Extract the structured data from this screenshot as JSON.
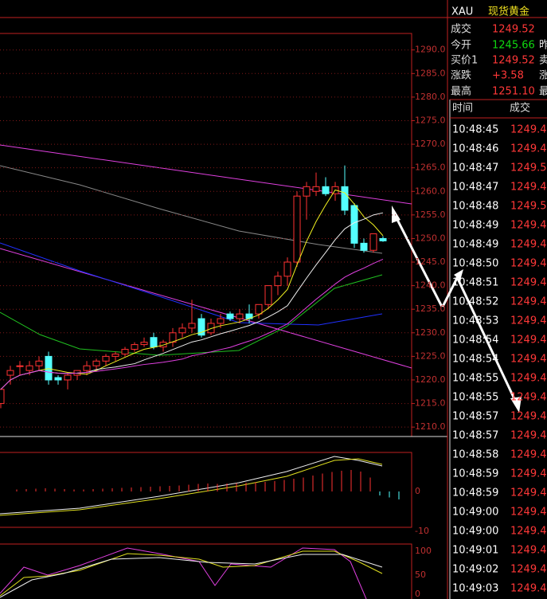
{
  "header": {
    "symbol": "XAU",
    "name": "现货黄金"
  },
  "quote": {
    "rows": [
      {
        "label": "成交",
        "value": "1249.52"
      },
      {
        "label": "今开",
        "value": "1245.66",
        "cut": "昨"
      },
      {
        "label": "买价1",
        "value": "1249.52",
        "cut": "卖"
      },
      {
        "label": "涨跌",
        "value": "+3.58",
        "cut": "涨"
      },
      {
        "label": "最高",
        "value": "1251.10",
        "cut": "最"
      }
    ]
  },
  "trades": {
    "headers": [
      "时间",
      "成交"
    ],
    "rows": [
      [
        "10:48:45",
        "1249.4"
      ],
      [
        "10:48:46",
        "1249.4"
      ],
      [
        "10:48:47",
        "1249.5"
      ],
      [
        "10:48:47",
        "1249.4"
      ],
      [
        "10:48:48",
        "1249.5"
      ],
      [
        "10:48:49",
        "1249.4"
      ],
      [
        "10:48:49",
        "1249.4"
      ],
      [
        "10:48:50",
        "1249.4"
      ],
      [
        "10:48:51",
        "1249.4"
      ],
      [
        "10:48:52",
        "1249.4"
      ],
      [
        "10:48:53",
        "1249.4"
      ],
      [
        "10:48:54",
        "1249.4"
      ],
      [
        "10:48:54",
        "1249.4"
      ],
      [
        "10:48:55",
        "1249.4"
      ],
      [
        "10:48:55",
        "1249.4"
      ],
      [
        "10:48:57",
        "1249.4"
      ],
      [
        "10:48:57",
        "1249.4"
      ],
      [
        "10:48:58",
        "1249.4"
      ],
      [
        "10:48:59",
        "1249.4"
      ],
      [
        "10:48:59",
        "1249.4"
      ],
      [
        "10:49:00",
        "1249.4"
      ],
      [
        "10:49:00",
        "1249.4"
      ],
      [
        "10:49:01",
        "1249.4"
      ],
      [
        "10:49:02",
        "1249.4"
      ],
      [
        "10:49:03",
        "1249.4"
      ]
    ]
  },
  "price_axis": {
    "ylim": [
      1208,
      1293.5
    ],
    "yticks": [
      {
        "value": 1290,
        "label": "1290.0"
      },
      {
        "value": 1285,
        "label": "1285.0"
      },
      {
        "value": 1280,
        "label": "1280.0"
      },
      {
        "value": 1275,
        "label": "1275.0"
      },
      {
        "value": 1270,
        "label": "1270.0"
      },
      {
        "value": 1265,
        "label": "1265.0"
      },
      {
        "value": 1260,
        "label": "1260.0"
      },
      {
        "value": 1255,
        "label": "1255.0"
      },
      {
        "value": 1250,
        "label": "1250.0"
      },
      {
        "value": 1245,
        "label": "1245.0"
      },
      {
        "value": 1240,
        "label": "1240.0"
      },
      {
        "value": 1235,
        "label": "1235.0"
      },
      {
        "value": 1230,
        "label": "1230.0"
      },
      {
        "value": 1225,
        "label": "1225.0"
      },
      {
        "value": 1220,
        "label": "1220.0"
      },
      {
        "value": 1215,
        "label": "1215.0"
      },
      {
        "value": 1210,
        "label": "1210.0"
      }
    ]
  },
  "candles": [
    {
      "o": 1215,
      "h": 1218,
      "l": 1214,
      "c": 1218
    },
    {
      "o": 1221,
      "h": 1223,
      "l": 1219,
      "c": 1222
    },
    {
      "o": 1223,
      "h": 1224,
      "l": 1221,
      "c": 1223
    },
    {
      "o": 1222,
      "h": 1224,
      "l": 1221,
      "c": 1223
    },
    {
      "o": 1223,
      "h": 1225,
      "l": 1222,
      "c": 1224
    },
    {
      "o": 1225,
      "h": 1226,
      "l": 1219,
      "c": 1220
    },
    {
      "o": 1220.5,
      "h": 1221,
      "l": 1219,
      "c": 1220
    },
    {
      "o": 1220,
      "h": 1221.5,
      "l": 1218,
      "c": 1221
    },
    {
      "o": 1221,
      "h": 1222,
      "l": 1220,
      "c": 1222
    },
    {
      "o": 1222,
      "h": 1224,
      "l": 1221,
      "c": 1223
    },
    {
      "o": 1223,
      "h": 1224.5,
      "l": 1222,
      "c": 1224
    },
    {
      "o": 1224,
      "h": 1225.5,
      "l": 1223,
      "c": 1225
    },
    {
      "o": 1225,
      "h": 1226,
      "l": 1224,
      "c": 1225.5
    },
    {
      "o": 1225.5,
      "h": 1227,
      "l": 1225,
      "c": 1226.5
    },
    {
      "o": 1226.5,
      "h": 1228,
      "l": 1226,
      "c": 1227.5
    },
    {
      "o": 1227.5,
      "h": 1229,
      "l": 1227,
      "c": 1228
    },
    {
      "o": 1229,
      "h": 1230,
      "l": 1226.5,
      "c": 1227
    },
    {
      "o": 1227,
      "h": 1228.5,
      "l": 1226,
      "c": 1228
    },
    {
      "o": 1228,
      "h": 1231,
      "l": 1227,
      "c": 1230
    },
    {
      "o": 1230,
      "h": 1232,
      "l": 1229,
      "c": 1231
    },
    {
      "o": 1231,
      "h": 1237,
      "l": 1230,
      "c": 1232
    },
    {
      "o": 1233,
      "h": 1234,
      "l": 1229,
      "c": 1229.5
    },
    {
      "o": 1230,
      "h": 1233,
      "l": 1229.5,
      "c": 1232
    },
    {
      "o": 1232,
      "h": 1234,
      "l": 1231,
      "c": 1233
    },
    {
      "o": 1234,
      "h": 1234.5,
      "l": 1232.5,
      "c": 1233
    },
    {
      "o": 1233,
      "h": 1235,
      "l": 1232,
      "c": 1234
    },
    {
      "o": 1234,
      "h": 1236,
      "l": 1232,
      "c": 1233
    },
    {
      "o": 1234,
      "h": 1236,
      "l": 1233,
      "c": 1236
    },
    {
      "o": 1236,
      "h": 1240,
      "l": 1235,
      "c": 1240
    },
    {
      "o": 1240,
      "h": 1243,
      "l": 1238,
      "c": 1242
    },
    {
      "o": 1242,
      "h": 1246,
      "l": 1240,
      "c": 1245
    },
    {
      "o": 1245,
      "h": 1260,
      "l": 1244,
      "c": 1259
    },
    {
      "o": 1259,
      "h": 1262,
      "l": 1254,
      "c": 1261
    },
    {
      "o": 1260,
      "h": 1264,
      "l": 1259,
      "c": 1261
    },
    {
      "o": 1261,
      "h": 1263,
      "l": 1259,
      "c": 1259.5
    },
    {
      "o": 1259.5,
      "h": 1262,
      "l": 1258,
      "c": 1261
    },
    {
      "o": 1261,
      "h": 1265.5,
      "l": 1255,
      "c": 1256
    },
    {
      "o": 1257,
      "h": 1257.5,
      "l": 1248,
      "c": 1249
    },
    {
      "o": 1249,
      "h": 1250,
      "l": 1247,
      "c": 1247.5
    },
    {
      "o": 1247.5,
      "h": 1251,
      "l": 1247,
      "c": 1251
    },
    {
      "o": 1250,
      "h": 1250.5,
      "l": 1249.3,
      "c": 1249.5
    }
  ],
  "macd": {
    "ylim": [
      -10,
      9.8
    ],
    "yticks": [
      0,
      -10
    ],
    "values": [
      0.5,
      0.6,
      0.7,
      0.8,
      0.7,
      0.6,
      0.5,
      0.5,
      0.6,
      0.7,
      0.8,
      0.9,
      1.0,
      1.1,
      1.2,
      1.3,
      1.4,
      1.5,
      1.7,
      1.9,
      2.0,
      1.9,
      2.0,
      2.1,
      2.2,
      2.3,
      2.4,
      2.6,
      2.9,
      3.2,
      3.5,
      4.0,
      4.5,
      4.9,
      5.2,
      5.4,
      5.0,
      3.5,
      -1.0,
      -1.5,
      -2.0
    ]
  },
  "kd": {
    "ylim": [
      0,
      100
    ],
    "yticks": [
      100,
      50,
      0
    ]
  }
}
